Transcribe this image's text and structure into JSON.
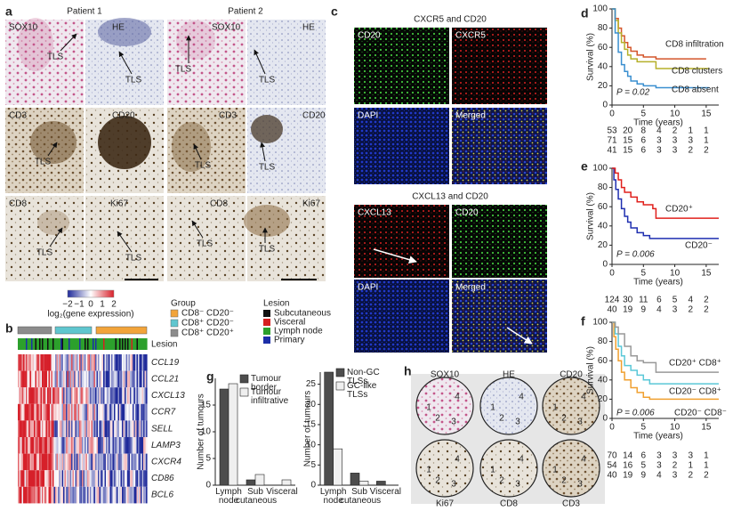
{
  "figure": {
    "panel_labels": {
      "a": "a",
      "b": "b",
      "c": "c",
      "g": "g",
      "h": "h"
    },
    "a": {
      "patients": [
        "Patient 1",
        "Patient 2"
      ],
      "stains": [
        [
          "SOX10",
          "HE",
          "SOX10",
          "HE"
        ],
        [
          "CD3",
          "CD20",
          "CD3",
          "CD20"
        ],
        [
          "CD8",
          "Ki67",
          "CD8",
          "Ki67"
        ]
      ],
      "tls": "TLS"
    },
    "colorbar": {
      "ticks": [
        {
          "value": -2,
          "label": "−2"
        },
        {
          "value": -1,
          "label": "−1"
        },
        0,
        1,
        2
      ],
      "label": "log₂(gene expression)"
    },
    "group_legend": {
      "title": "Group",
      "items": [
        {
          "name": "CD8⁻ CD20⁻",
          "color": "#f2a43a"
        },
        {
          "name": "CD8⁺ CD20⁻",
          "color": "#5fc6cf"
        },
        {
          "name": "CD8⁺ CD20⁺",
          "color": "#8c8c8c"
        }
      ]
    },
    "lesion_legend": {
      "title": "Lesion",
      "items": [
        {
          "name": "Subcutaneous",
          "color": "#111111"
        },
        {
          "name": "Visceral",
          "color": "#d62020"
        },
        {
          "name": "Lymph node",
          "color": "#2ca02c"
        },
        {
          "name": "Primary",
          "color": "#1c2fa8"
        }
      ]
    },
    "b": {
      "lesion_label": "Lesion",
      "genes": [
        "CCL19",
        "CCL21",
        "CXCL13",
        "CCR7",
        "SELL",
        "LAMP3",
        "CXCR4",
        "CD86",
        "BCL6"
      ]
    },
    "c": {
      "panels": [
        {
          "title": "CXCR5 and CD20",
          "tiles": [
            "CD20",
            "CXCR5",
            "DAPI",
            "Merged"
          ]
        },
        {
          "title": "CXCL13 and CD20",
          "tiles": [
            "CXCL13",
            "CD20",
            "DAPI",
            "Merged"
          ]
        }
      ]
    },
    "h": {
      "cores": [
        [
          "SOX10",
          "HE",
          "CD20"
        ],
        [
          "Ki67",
          "CD8",
          "CD3"
        ]
      ],
      "regions": [
        "1",
        "2",
        "3",
        "4"
      ]
    }
  },
  "chart_data": [
    {
      "type": "line",
      "label": "d",
      "y_label": "Survival (%)",
      "x_label": "Time (years)",
      "xlim": [
        0,
        17
      ],
      "ylim": [
        0,
        100
      ],
      "xticks": [
        0,
        5,
        10,
        15
      ],
      "yticks": [
        0,
        20,
        40,
        60,
        80,
        100
      ],
      "annotation": "P = 0.02",
      "series": [
        {
          "name": "CD8 infiltration",
          "color": "#d4562b",
          "x": [
            0,
            0.5,
            1,
            1.5,
            2,
            2.5,
            3,
            4,
            5,
            7,
            15
          ],
          "values": [
            100,
            90,
            80,
            72,
            65,
            60,
            56,
            52,
            50,
            48,
            48
          ]
        },
        {
          "name": "CD8 clusters",
          "color": "#b5b02a",
          "x": [
            0,
            0.5,
            1,
            1.5,
            2,
            2.5,
            3,
            4,
            5,
            7,
            15.5
          ],
          "values": [
            100,
            88,
            75,
            65,
            58,
            52,
            48,
            45,
            45,
            38,
            38
          ]
        },
        {
          "name": "CD8 absent",
          "color": "#3a8fd0",
          "x": [
            0,
            0.5,
            1,
            1.5,
            2,
            2.5,
            3,
            4,
            5,
            7,
            15.5
          ],
          "values": [
            100,
            75,
            55,
            42,
            35,
            30,
            25,
            22,
            20,
            18,
            18
          ]
        }
      ],
      "risk_table": [
        [
          53,
          20,
          8,
          4,
          2,
          1,
          1
        ],
        [
          71,
          15,
          6,
          3,
          3,
          3,
          1
        ],
        [
          41,
          15,
          6,
          3,
          3,
          2,
          2
        ]
      ]
    },
    {
      "type": "line",
      "label": "e",
      "y_label": "Survival (%)",
      "x_label": "Time (years)",
      "xlim": [
        0,
        17
      ],
      "ylim": [
        0,
        100
      ],
      "xticks": [
        0,
        5,
        10,
        15
      ],
      "yticks": [
        0,
        20,
        40,
        60,
        80,
        100
      ],
      "annotation": "P = 0.006",
      "series": [
        {
          "name": "CD20⁻",
          "color": "#1f2fb0",
          "x": [
            0,
            0.3,
            0.6,
            1,
            1.5,
            2,
            2.5,
            3,
            4,
            5,
            6,
            17
          ],
          "values": [
            100,
            88,
            78,
            68,
            58,
            50,
            44,
            38,
            33,
            30,
            27,
            27
          ]
        },
        {
          "name": "CD20⁺",
          "color": "#e0201c",
          "x": [
            0,
            0.5,
            1,
            1.5,
            2,
            3,
            4,
            5,
            6.5,
            7,
            17
          ],
          "values": [
            100,
            95,
            88,
            80,
            75,
            70,
            65,
            62,
            58,
            48,
            48
          ]
        }
      ],
      "risk_table": [
        [
          124,
          30,
          11,
          6,
          5,
          4,
          2
        ],
        [
          40,
          19,
          9,
          4,
          3,
          2,
          2
        ]
      ]
    },
    {
      "type": "line",
      "label": "f",
      "y_label": "Survival (%)",
      "x_label": "Time (years)",
      "xlim": [
        0,
        17
      ],
      "ylim": [
        0,
        100
      ],
      "xticks": [
        0,
        5,
        10,
        15
      ],
      "yticks": [
        0,
        20,
        40,
        60,
        80,
        100
      ],
      "annotation": "P = 0.006",
      "series": [
        {
          "name": "CD20⁻ CD8⁻",
          "color": "#f0a030",
          "x": [
            0,
            0.3,
            0.6,
            1,
            1.5,
            2,
            3,
            4,
            5,
            6,
            17
          ],
          "values": [
            100,
            85,
            72,
            60,
            48,
            40,
            32,
            27,
            22,
            20,
            20
          ]
        },
        {
          "name": "CD20⁻ CD8⁺",
          "color": "#5bc8d8",
          "x": [
            0,
            0.5,
            1,
            1.5,
            2,
            3,
            4,
            5,
            6,
            17
          ],
          "values": [
            100,
            88,
            75,
            65,
            55,
            50,
            45,
            40,
            36,
            36
          ]
        },
        {
          "name": "CD20⁺ CD8⁺",
          "color": "#999999",
          "x": [
            0,
            0.5,
            1,
            2,
            3,
            4,
            5,
            7,
            17
          ],
          "values": [
            100,
            95,
            88,
            75,
            65,
            60,
            58,
            48,
            48
          ]
        }
      ],
      "risk_table": [
        [
          70,
          14,
          6,
          3,
          3,
          3,
          1
        ],
        [
          54,
          16,
          5,
          3,
          2,
          1,
          1
        ],
        [
          40,
          19,
          9,
          4,
          3,
          2,
          2
        ]
      ]
    },
    {
      "type": "bar",
      "y_label": "Number of tumours",
      "categories": [
        "Lymph node",
        "Sub cutaneous",
        "Visceral"
      ],
      "ylim": [
        0,
        20
      ],
      "yticks": [
        0,
        5,
        10,
        15
      ],
      "series": [
        {
          "name": "Tumour border",
          "color": "#4d4d4d",
          "values": [
            18,
            1,
            0
          ]
        },
        {
          "name": "Tumour infiltrative",
          "color": "#efefef",
          "values": [
            19,
            2,
            1
          ]
        }
      ]
    },
    {
      "type": "bar",
      "y_label": "Number of tumours",
      "categories": [
        "Lymph node",
        "Sub cutaneous",
        "Visceral"
      ],
      "ylim": [
        0,
        28
      ],
      "yticks": [
        0,
        5,
        10,
        15,
        20,
        25
      ],
      "series": [
        {
          "name": "Non-GC TLSs",
          "color": "#4d4d4d",
          "values": [
            28,
            3,
            1
          ]
        },
        {
          "name": "GC-like TLSs",
          "color": "#efefef",
          "values": [
            9,
            1,
            0
          ]
        }
      ]
    }
  ]
}
